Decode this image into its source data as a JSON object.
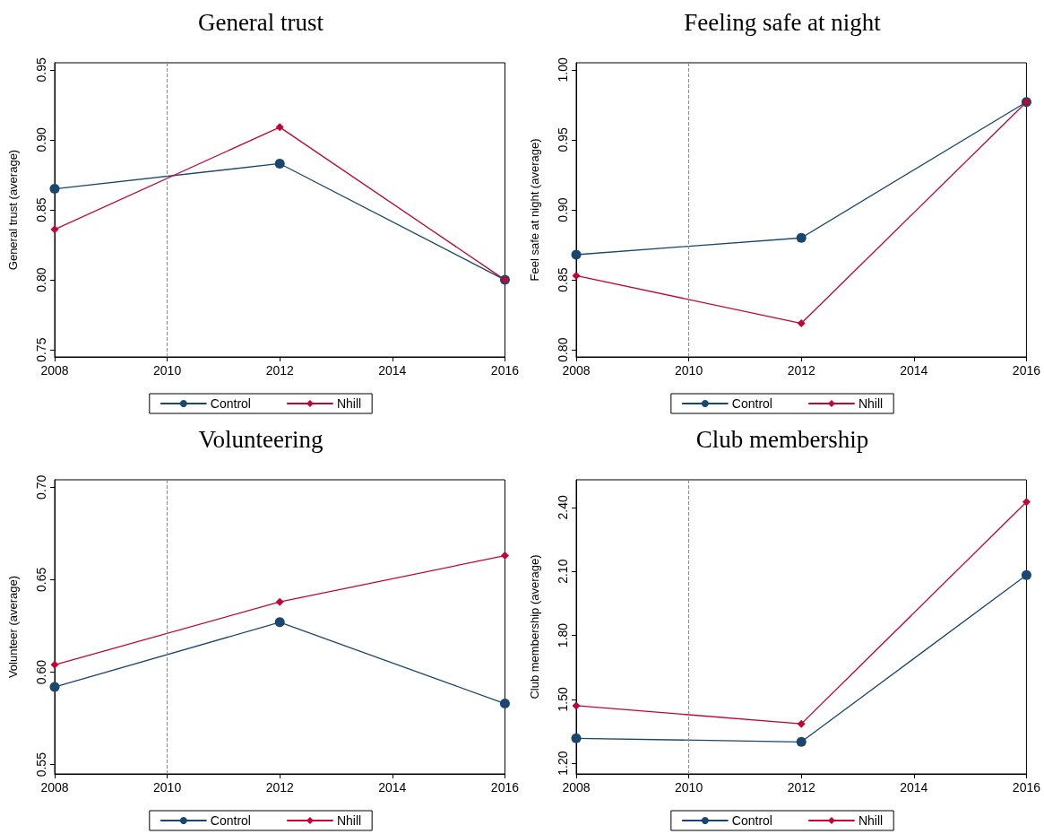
{
  "chart_data": [
    {
      "type": "line",
      "title": "General trust",
      "ylabel": "General trust (average)",
      "x": [
        2008,
        2012,
        2016
      ],
      "xlim": [
        2008,
        2016
      ],
      "xticks": [
        2008,
        2010,
        2012,
        2014,
        2016
      ],
      "ylim": [
        0.745,
        0.955
      ],
      "yticks": [
        {
          "value": 0.75,
          "label": "0.75"
        },
        {
          "value": 0.8,
          "label": "0.80"
        },
        {
          "value": 0.85,
          "label": "0.85"
        },
        {
          "value": 0.9,
          "label": "0.90"
        },
        {
          "value": 0.95,
          "label": "0.95"
        }
      ],
      "grid": false,
      "legend": "bottom",
      "line_style": "solid",
      "series": [
        {
          "name": "Control",
          "color": "#1a476f",
          "marker": "circle",
          "values": [
            0.865,
            0.883,
            0.8
          ]
        },
        {
          "name": "Nhill",
          "color": "#c10534",
          "marker": "diamond",
          "values": [
            0.836,
            0.909,
            0.8
          ]
        }
      ],
      "ref_lines": [
        {
          "axis": "x",
          "value": 2010,
          "color": "#8c8c8c",
          "line_style": "dashed"
        }
      ]
    },
    {
      "type": "line",
      "title": "Feeling safe at night",
      "ylabel": "Feel safe at night (average)",
      "x": [
        2008,
        2012,
        2016
      ],
      "xlim": [
        2008,
        2016
      ],
      "xticks": [
        2008,
        2010,
        2012,
        2014,
        2016
      ],
      "ylim": [
        0.795,
        1.005
      ],
      "yticks": [
        {
          "value": 0.8,
          "label": "0.80"
        },
        {
          "value": 0.85,
          "label": "0.85"
        },
        {
          "value": 0.9,
          "label": "0.90"
        },
        {
          "value": 0.95,
          "label": "0.95"
        },
        {
          "value": 1.0,
          "label": "1.00"
        }
      ],
      "grid": false,
      "legend": "bottom",
      "line_style": "solid",
      "series": [
        {
          "name": "Control",
          "color": "#1a476f",
          "marker": "circle",
          "values": [
            0.868,
            0.88,
            0.977
          ]
        },
        {
          "name": "Nhill",
          "color": "#c10534",
          "marker": "diamond",
          "values": [
            0.853,
            0.819,
            0.977
          ]
        }
      ],
      "ref_lines": [
        {
          "axis": "x",
          "value": 2010,
          "color": "#8c8c8c",
          "line_style": "dashed"
        }
      ]
    },
    {
      "type": "line",
      "title": "Volunteering",
      "ylabel": "Volunteer (average)",
      "x": [
        2008,
        2012,
        2016
      ],
      "xlim": [
        2008,
        2016
      ],
      "xticks": [
        2008,
        2010,
        2012,
        2014,
        2016
      ],
      "ylim": [
        0.545,
        0.704
      ],
      "yticks": [
        {
          "value": 0.55,
          "label": "0.55"
        },
        {
          "value": 0.6,
          "label": "0.60"
        },
        {
          "value": 0.65,
          "label": "0.65"
        },
        {
          "value": 0.7,
          "label": "0.70"
        }
      ],
      "grid": false,
      "legend": "bottom",
      "line_style": "solid",
      "series": [
        {
          "name": "Control",
          "color": "#1a476f",
          "marker": "circle",
          "values": [
            0.592,
            0.627,
            0.583
          ]
        },
        {
          "name": "Nhill",
          "color": "#c10534",
          "marker": "diamond",
          "values": [
            0.604,
            0.638,
            0.663
          ]
        }
      ],
      "ref_lines": [
        {
          "axis": "x",
          "value": 2010,
          "color": "#8c8c8c",
          "line_style": "dashed"
        }
      ]
    },
    {
      "type": "line",
      "title": "Club membership",
      "ylabel": "Club membership (average)",
      "x": [
        2008,
        2012,
        2016
      ],
      "xlim": [
        2008,
        2016
      ],
      "xticks": [
        2008,
        2010,
        2012,
        2014,
        2016
      ],
      "ylim": [
        1.15,
        2.53
      ],
      "yticks": [
        {
          "value": 1.2,
          "label": "1.20"
        },
        {
          "value": 1.5,
          "label": "1.50"
        },
        {
          "value": 1.8,
          "label": "1.80"
        },
        {
          "value": 2.1,
          "label": "2.10"
        },
        {
          "value": 2.4,
          "label": "2.40"
        }
      ],
      "grid": false,
      "legend": "bottom",
      "line_style": "solid",
      "series": [
        {
          "name": "Control",
          "color": "#1a476f",
          "marker": "circle",
          "values": [
            1.317,
            1.3,
            2.083
          ]
        },
        {
          "name": "Nhill",
          "color": "#c10534",
          "marker": "diamond",
          "values": [
            1.47,
            1.385,
            2.426
          ]
        }
      ],
      "ref_lines": [
        {
          "axis": "x",
          "value": 2010,
          "color": "#8c8c8c",
          "line_style": "dashed"
        }
      ]
    }
  ]
}
